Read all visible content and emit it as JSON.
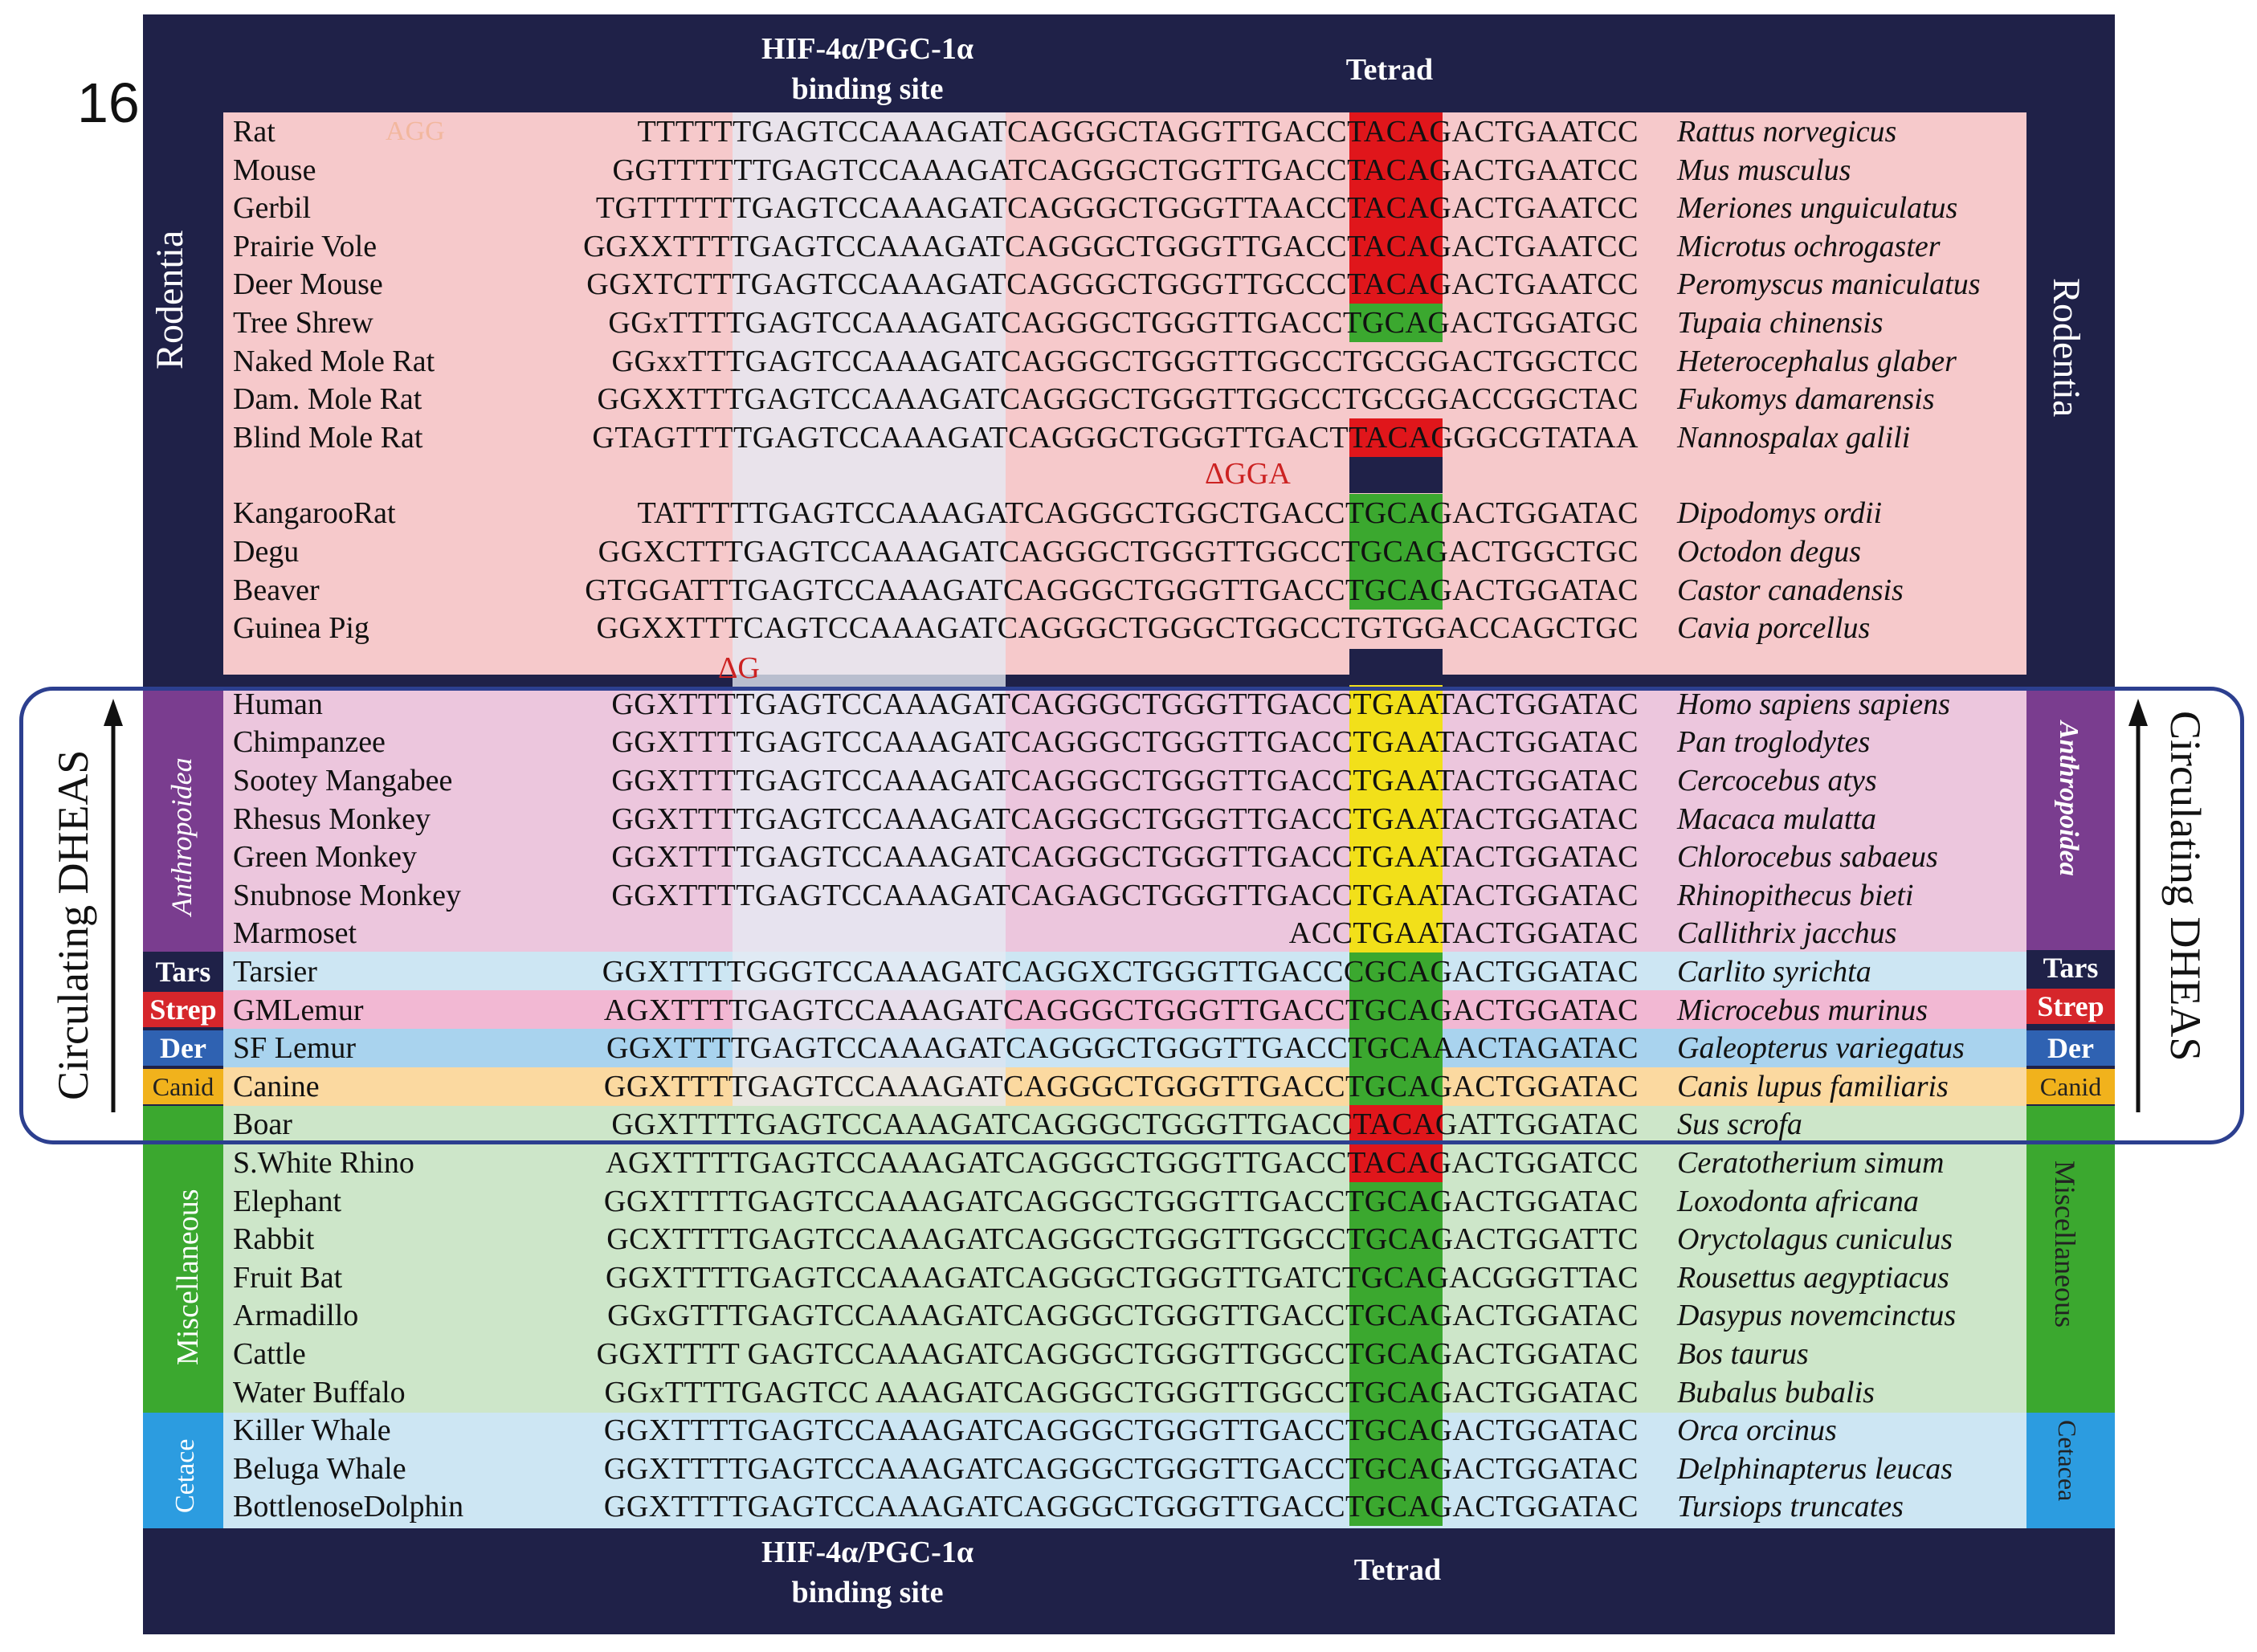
{
  "panel_number": "16",
  "headers": {
    "binding_site": "HIF-4α/PGC-1α binding site",
    "tetrad": "Tetrad"
  },
  "groups": {
    "rodentia": "Rodentia",
    "anthropoidea": "Anthropoidea",
    "tars": "Tars",
    "strep": "Strep",
    "der": "Der",
    "canid": "Canid",
    "miscellaneous": "Miscellaneous",
    "cetacea": "Cetacea",
    "cetacea_left": "Cetace"
  },
  "annotations": {
    "circulating_dheas": "Circulating DHEAS",
    "deletion_gga": "ΔGGA",
    "deletion_g": "ΔG",
    "rat_faint_mark": "AGG"
  },
  "colors": {
    "frame": "#1f2148",
    "rodent_band": "#f6c9cb",
    "binding_site_highlight": "#e6eaf3",
    "primate_band": "#ecc6dd",
    "misc_band": "#cde6c9",
    "cetacea_band": "#cde6f3",
    "tetrad_red": "#e0161b",
    "tetrad_green": "#3ba82f",
    "tetrad_yellow": "#f2e01a",
    "mutation_red": "#d42020",
    "mutation_orange": "#e88a2a"
  },
  "rows": [
    {
      "common": "Rat",
      "sequence": "TTTTTTGAGTCCAAAGATCAGGGCTAGGTTGACCTACAGACTGAATCC",
      "tetrad": "ACAG",
      "tetrad_color": "red",
      "scientific": "Rattus norvegicus"
    },
    {
      "common": "Mouse",
      "sequence": "GGTTTTTTGAGTCCAAAGATCAGGGCTGGTTGACCTACAGACTGAATCC",
      "tetrad": "ACAG",
      "tetrad_color": "red",
      "scientific": "Mus musculus"
    },
    {
      "common": "Gerbil",
      "sequence": "TGTTTTTTGAGTCCAAAGATCAGGGCTGGGTTAACCTACAGACTGAATCC",
      "tetrad": "ACAG",
      "tetrad_color": "red",
      "scientific": "Meriones unguiculatus"
    },
    {
      "common": "Prairie Vole",
      "sequence": "GGXXTTTTGAGTCCAAAGATCAGGGCTGGGTTGACCTACAGACTGAATCC",
      "tetrad": "ACAG",
      "tetrad_color": "red",
      "scientific": "Microtus ochrogaster"
    },
    {
      "common": "Deer Mouse",
      "sequence": "GGXTCTTTGAGTCCAAAGATCAGGGCTGGGTTGCCCTACAGACTGAATCC",
      "tetrad": "ACAG",
      "tetrad_color": "red",
      "scientific": "Peromyscus maniculatus"
    },
    {
      "common": "Tree Shrew",
      "sequence": "GGxTTTTGAGTCCAAAGATCAGGGCTGGGTTGACCTGCAGACTGGATGC",
      "tetrad": "GCAG",
      "tetrad_color": "green",
      "scientific": "Tupaia chinensis"
    },
    {
      "common": "Naked Mole Rat",
      "sequence": "GGxxTTTGAGTCCAAAGATCAGGGCTGGGTTGGCCTGCGGACTGGCTCC",
      "tetrad": "GCGG",
      "tetrad_color": "none",
      "scientific": "Heterocephalus glaber"
    },
    {
      "common": "Dam. Mole Rat",
      "sequence": "GGXXTTTGAGTCCAAAGATCAGGGCTGGGTTGGCCTGCGGACCGGCTAC",
      "tetrad": "GCGG",
      "tetrad_color": "none",
      "scientific": "Fukomys damarensis"
    },
    {
      "common": "Blind Mole Rat",
      "sequence": "GTAGTTTTGAGTCCAAAGATCAGGGCTGGGTTGACTTACAGGGCGTATAA",
      "tetrad": "ACAG",
      "tetrad_color": "red",
      "scientific": "Nannospalax galili"
    },
    {
      "common": "KangarooRat",
      "sequence": "TATTTTTGAGTCCAAAGATCAGGGCTGGCTGACCTGCAGACTGGATAC",
      "tetrad": "GCAG",
      "tetrad_color": "green",
      "scientific": "Dipodomys ordii"
    },
    {
      "common": "Degu",
      "sequence": "GGXCTTTGAGTCCAAAGATCAGGGCTGGGTTGGCCTGCAGACTGGCTGC",
      "tetrad": "GCAG",
      "tetrad_color": "green",
      "scientific": "Octodon degus"
    },
    {
      "common": "Beaver",
      "sequence": "GTGGATTTGAGTCCAAAGATCAGGGCTGGGTTGACCTGCAGACTGGATAC",
      "tetrad": "GCAG",
      "tetrad_color": "green",
      "scientific": "Castor canadensis"
    },
    {
      "common": "Guinea Pig",
      "sequence": "GGXXTTTCAGTCCAAAGATCAGGGCTGGGCTGGCCTGTGGACCAGCTGC",
      "tetrad": "GTGG",
      "tetrad_color": "none",
      "scientific": "Cavia porcellus"
    },
    {
      "common": "Human",
      "sequence": "GGXTTTTGAGTCCAAAGATCAGGGCTGGGTTGACCTGAATACTGGATAC",
      "tetrad": "GAAT",
      "tetrad_color": "yellow",
      "scientific": "Homo sapiens sapiens"
    },
    {
      "common": "Chimpanzee",
      "sequence": "GGXTTTTGAGTCCAAAGATCAGGGCTGGGTTGACCTGAATACTGGATAC",
      "tetrad": "GAAT",
      "tetrad_color": "yellow",
      "scientific": "Pan troglodytes"
    },
    {
      "common": "Sootey Mangabee",
      "sequence": "GGXTTTTGAGTCCAAAGATCAGGGCTGGGTTGACCTGAATACTGGATAC",
      "tetrad": "GAAT",
      "tetrad_color": "yellow",
      "scientific": "Cercocebus atys"
    },
    {
      "common": "Rhesus Monkey",
      "sequence": "GGXTTTTGAGTCCAAAGATCAGGGCTGGGTTGACCTGAATACTGGATAC",
      "tetrad": "GAAT",
      "tetrad_color": "yellow",
      "scientific": "Macaca mulatta"
    },
    {
      "common": "Green Monkey",
      "sequence": "GGXTTTTGAGTCCAAAGATCAGGGCTGGGTTGACCTGAATACTGGATAC",
      "tetrad": "GAAT",
      "tetrad_color": "yellow",
      "scientific": "Chlorocebus sabaeus"
    },
    {
      "common": "Snubnose Monkey",
      "sequence": "GGXTTTTGAGTCCAAAGATCAGAGCTGGGTTGACCTGAATACTGGATAC",
      "tetrad": "GAAT",
      "tetrad_color": "yellow",
      "scientific": "Rhinopithecus bieti"
    },
    {
      "common": "Marmoset",
      "sequence": "ACCTGAATACTGGATAC",
      "tetrad": "GAAT",
      "tetrad_color": "yellow",
      "scientific": "Callithrix jacchus"
    },
    {
      "common": "Tarsier",
      "sequence": "GGXTTTTGGGTCCAAAGATCAGGXCTGGGTTGACCCGCAGACTGGATAC",
      "tetrad": "GCAG",
      "tetrad_color": "green",
      "scientific": "Carlito syrichta"
    },
    {
      "common": "GMLemur",
      "sequence": "AGXTTTTGAGTCCAAAGATCAGGGCTGGGTTGACCTGCAGACTGGATAC",
      "tetrad": "GCAG",
      "tetrad_color": "green",
      "scientific": "Microcebus murinus"
    },
    {
      "common": "SF Lemur",
      "sequence": "GGXTTTTGAGTCCAAAGATCAGGGCTGGGTTGACCTGCAAACTAGATAC",
      "tetrad": "GCAA",
      "tetrad_color": "green",
      "scientific": "Galeopterus variegatus"
    },
    {
      "common": "Canine",
      "sequence": "GGXTTTTGAGTCCAAAGATCAGGGCTGGGTTGACCTGCAGACTGGATAC",
      "tetrad": "GCAG",
      "tetrad_color": "green",
      "scientific": "Canis lupus familiaris"
    },
    {
      "common": "Boar",
      "sequence": "GGXTTTTGAGTCCAAAGATCAGGGCTGGGTTGACCTACAGATTGGATAC",
      "tetrad": "ACAG",
      "tetrad_color": "red",
      "scientific": "Sus scrofa"
    },
    {
      "common": "S.White Rhino",
      "sequence": "AGXTTTTGAGTCCAAAGATCAGGGCTGGGTTGACCTACAGACTGGATCC",
      "tetrad": "ACAG",
      "tetrad_color": "red",
      "scientific": "Ceratotherium simum"
    },
    {
      "common": "Elephant",
      "sequence": "GGXTTTTGAGTCCAAAGATCAGGGCTGGGTTGACCTGCAGACTGGATAC",
      "tetrad": "GCAG",
      "tetrad_color": "green",
      "scientific": "Loxodonta africana"
    },
    {
      "common": "Rabbit",
      "sequence": "GCXTTTTGAGTCCAAAGATCAGGGCTGGGTTGGCCTGCAGACTGGATTC",
      "tetrad": "GCAG",
      "tetrad_color": "green",
      "scientific": "Oryctolagus cuniculus"
    },
    {
      "common": "Fruit Bat",
      "sequence": "GGXTTTTGAGTCCAAAGATCAGGGCTGGGTTGATCTGCAGACGGGTTAC",
      "tetrad": "GCAG",
      "tetrad_color": "green",
      "scientific": "Rousettus aegyptiacus"
    },
    {
      "common": "Armadillo",
      "sequence": "GGxGTTTGAGTCCAAAGATCAGGGCTGGGTTGACCTGCAGACTGGATAC",
      "tetrad": "GCAG",
      "tetrad_color": "green",
      "scientific": "Dasypus novemcinctus"
    },
    {
      "common": "Cattle",
      "sequence": "GGXTTTT GAGTCCAAAGATCAGGGCTGGGTTGGCCTGCAGACTGGATAC",
      "tetrad": "GCAG",
      "tetrad_color": "green",
      "scientific": "Bos taurus"
    },
    {
      "common": "Water Buffalo",
      "sequence": "GGxTTTTGAGTCC AAAGATCAGGGCTGGGTTGGCCTGCAGACTGGATAC",
      "tetrad": "GCAG",
      "tetrad_color": "green",
      "scientific": "Bubalus bubalis"
    },
    {
      "common": "Killer Whale",
      "sequence": "GGXTTTTGAGTCCAAAGATCAGGGCTGGGTTGACCTGCAGACTGGATAC",
      "tetrad": "GCAG",
      "tetrad_color": "green",
      "scientific": "Orca orcinus"
    },
    {
      "common": "Beluga Whale",
      "sequence": "GGXTTTTGAGTCCAAAGATCAGGGCTGGGTTGACCTGCAGACTGGATAC",
      "tetrad": "GCAG",
      "tetrad_color": "green",
      "scientific": "Delphinapterus leucas"
    },
    {
      "common": "BottlenoseDolphin",
      "sequence": "GGXTTTTGAGTCCAAAGATCAGGGCTGGGTTGACCTGCAGACTGGATAC",
      "tetrad": "GCAG",
      "tetrad_color": "green",
      "scientific": "Tursiops truncates"
    }
  ]
}
